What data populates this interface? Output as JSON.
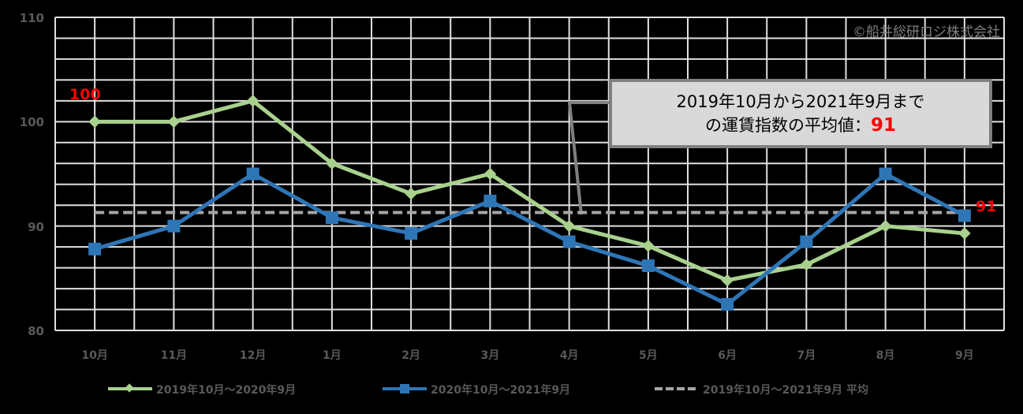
{
  "chart_data": {
    "type": "line",
    "title": "",
    "xlabel": "",
    "ylabel": "",
    "categories": [
      "10月",
      "11月",
      "12月",
      "1月",
      "2月",
      "3月",
      "4月",
      "5月",
      "6月",
      "7月",
      "8月",
      "9月"
    ],
    "series": [
      {
        "name": "2019年10月～2020年9月",
        "color": "#a9d18e",
        "marker": "diamond",
        "values": [
          100,
          100,
          102,
          96,
          93.1,
          95,
          90,
          88.1,
          84.8,
          86.3,
          90,
          89.3
        ]
      },
      {
        "name": "2020年10月～2021年9月",
        "color": "#2e75b6",
        "marker": "square",
        "values": [
          87.8,
          90,
          95,
          90.8,
          89.3,
          92.4,
          88.5,
          86.2,
          82.5,
          88.5,
          95,
          91
        ]
      },
      {
        "name": "2019年10月～2021年9月 平均",
        "color": "#a6a6a6",
        "style": "dashed",
        "values": [
          91.3,
          91.3,
          91.3,
          91.3,
          91.3,
          91.3,
          91.3,
          91.3,
          91.3,
          91.3,
          91.3,
          91.3
        ]
      }
    ],
    "ylim": [
      80,
      110
    ],
    "yticks": [
      80,
      90,
      100,
      110
    ],
    "grid": true,
    "legend_position": "bottom",
    "annotations": [
      {
        "text": "100",
        "target": "2019年10月～2020年9月 / 10月",
        "color": "#ff0000"
      },
      {
        "text": "91",
        "target": "2020年10月～2021年9月 / 9月",
        "color": "#ff0000"
      },
      {
        "text": "2019年10月から2021年9月までの運賃指数の平均値：91",
        "type": "callout"
      }
    ]
  },
  "axis": {
    "y_labels": [
      "110",
      "100",
      "90",
      "80"
    ],
    "x_labels": [
      "10月",
      "11月",
      "12月",
      "1月",
      "2月",
      "3月",
      "4月",
      "5月",
      "6月",
      "7月",
      "8月",
      "9月"
    ]
  },
  "labels": {
    "start_value": "100",
    "end_value": "91"
  },
  "callout": {
    "line1": "2019年10月から2021年9月まで",
    "line2_prefix": "の運賃指数の平均値：",
    "line2_value": "91"
  },
  "copyright": "©船井総研ロジ株式会社",
  "legend": {
    "items": [
      {
        "label": "2019年10月～2020年9月",
        "color": "#a9d18e"
      },
      {
        "label": "2020年10月～2021年9月",
        "color": "#2e75b6"
      },
      {
        "label": "2019年10月～2021年9月 平均",
        "color": "#a6a6a6"
      }
    ]
  },
  "colors": {
    "background": "#000000",
    "grid": "#e0e0e0",
    "series1": "#a9d18e",
    "series2": "#2e75b6",
    "average": "#a6a6a6",
    "highlight": "#ff0000",
    "axis_text": "#595959"
  }
}
